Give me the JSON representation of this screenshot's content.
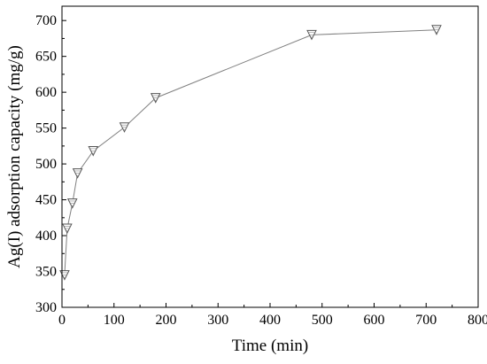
{
  "chart_data": {
    "type": "line",
    "title": "",
    "xlabel": "Time (min)",
    "ylabel": "Ag(I) adsorption capacity (mg/g)",
    "xlim": [
      0,
      800
    ],
    "ylim": [
      300,
      720
    ],
    "x_ticks": [
      "0",
      "100",
      "200",
      "300",
      "400",
      "500",
      "600",
      "700",
      "800"
    ],
    "y_ticks": [
      "300",
      "350",
      "400",
      "450",
      "500",
      "550",
      "600",
      "650",
      "700"
    ],
    "grid": false,
    "legend": "none",
    "marker": "triangle-down-hatched",
    "line_color": "#808080",
    "series": [
      {
        "x": [
          5,
          10,
          20,
          30,
          60,
          120,
          180,
          480,
          720
        ],
        "y": [
          345,
          410,
          445,
          487,
          518,
          551,
          592,
          680,
          687
        ]
      }
    ]
  }
}
